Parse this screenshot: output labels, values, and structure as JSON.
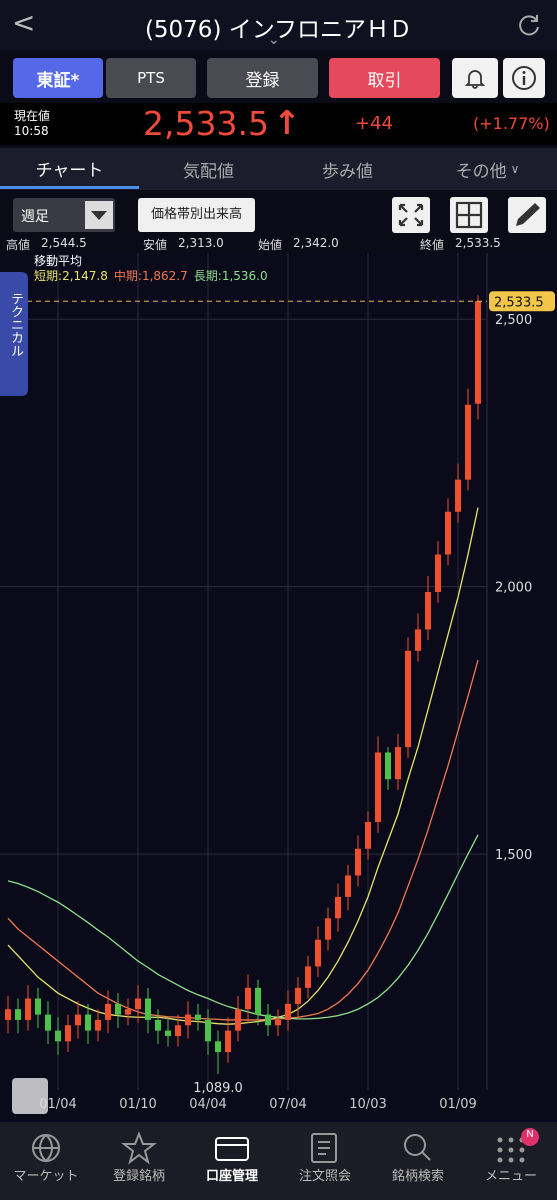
{
  "header": {
    "back": "<",
    "title": "(5076) インフロニアＨＤ",
    "chevron": "⌄"
  },
  "buttons": {
    "market": "東証*",
    "pts": "PTS",
    "register": "登録",
    "trade": "取引"
  },
  "quote": {
    "label": "現在値",
    "time": "10:58",
    "price": "2,533.5",
    "arrow": "↑",
    "change": "+44",
    "change_pct": "(+1.77%)"
  },
  "tabs": [
    "チャート",
    "気配値",
    "歩み値",
    "その他"
  ],
  "toolbar": {
    "period": "週足",
    "volume_profile": "価格帯別出来高"
  },
  "summary": [
    {
      "label": "高値",
      "value": "2,544.5"
    },
    {
      "label": "安値",
      "value": "2,313.0"
    },
    {
      "label": "始値",
      "value": "2,342.0"
    },
    {
      "label": "終値",
      "value": "2,533.5"
    }
  ],
  "side_tab": "テクニカル",
  "chart_data": {
    "type": "candlestick",
    "indicator_title": "移動平均",
    "categories": [
      null,
      null,
      null,
      null,
      null,
      "01/04",
      null,
      null,
      null,
      null,
      null,
      null,
      null,
      "01/10",
      null,
      null,
      null,
      null,
      null,
      null,
      "04/04",
      null,
      null,
      null,
      null,
      null,
      null,
      null,
      "07/04",
      null,
      null,
      null,
      null,
      null,
      null,
      null,
      "10/03",
      null,
      null,
      null,
      null,
      null,
      null,
      null,
      null,
      "01/09",
      null,
      null
    ],
    "open": [
      1190,
      1210,
      1190,
      1230,
      1200,
      1170,
      1150,
      1180,
      1200,
      1170,
      1190,
      1220,
      1200,
      1210,
      1230,
      1190,
      1170,
      1160,
      1180,
      1200,
      1190,
      1150,
      1130,
      1170,
      1210,
      1250,
      1200,
      1180,
      1190,
      1220,
      1250,
      1290,
      1340,
      1380,
      1420,
      1460,
      1510,
      1560,
      1690,
      1640,
      1700,
      1880,
      1920,
      1990,
      2060,
      2140,
      2200,
      2342
    ],
    "high": [
      1235,
      1230,
      1255,
      1250,
      1225,
      1195,
      1200,
      1225,
      1220,
      1210,
      1245,
      1240,
      1230,
      1255,
      1250,
      1210,
      1195,
      1200,
      1225,
      1220,
      1210,
      1170,
      1195,
      1235,
      1275,
      1265,
      1220,
      1210,
      1245,
      1270,
      1310,
      1365,
      1400,
      1445,
      1480,
      1535,
      1580,
      1720,
      1700,
      1725,
      1905,
      1950,
      2020,
      2085,
      2165,
      2230,
      2370,
      2544.5
    ],
    "low": [
      1165,
      1165,
      1170,
      1175,
      1145,
      1125,
      1130,
      1155,
      1145,
      1150,
      1165,
      1175,
      1180,
      1185,
      1165,
      1145,
      1140,
      1140,
      1155,
      1170,
      1125,
      1089,
      1110,
      1150,
      1185,
      1180,
      1160,
      1160,
      1170,
      1195,
      1230,
      1270,
      1320,
      1355,
      1395,
      1440,
      1490,
      1540,
      1620,
      1620,
      1680,
      1860,
      1900,
      1970,
      2040,
      2120,
      2180,
      2313
    ],
    "close": [
      1210,
      1190,
      1230,
      1200,
      1170,
      1150,
      1180,
      1200,
      1170,
      1190,
      1220,
      1200,
      1210,
      1230,
      1190,
      1170,
      1160,
      1180,
      1200,
      1190,
      1150,
      1130,
      1170,
      1210,
      1250,
      1200,
      1180,
      1190,
      1220,
      1250,
      1290,
      1340,
      1380,
      1420,
      1460,
      1510,
      1560,
      1690,
      1640,
      1700,
      1880,
      1920,
      1990,
      2060,
      2140,
      2200,
      2340,
      2533.5
    ],
    "last_price_label": "2,533.5",
    "low_label": "1,089.0",
    "up_color": "#f0502e",
    "down_color": "#4cc24a",
    "series": [
      {
        "name": "短期",
        "color": "#e8e36a",
        "values": [
          1330,
          1310,
          1290,
          1270,
          1255,
          1240,
          1230,
          1220,
          1212,
          1205,
          1200,
          1198,
          1196,
          1195,
          1195,
          1195,
          1193,
          1190,
          1188,
          1187,
          1185,
          1183,
          1182,
          1183,
          1185,
          1187,
          1190,
          1195,
          1200,
          1210,
          1225,
          1245,
          1270,
          1300,
          1335,
          1375,
          1420,
          1475,
          1525,
          1575,
          1640,
          1700,
          1770,
          1840,
          1910,
          1980,
          2060,
          2147.8
        ],
        "value_labels": [
          null,
          null,
          null,
          null,
          null,
          null,
          null,
          null,
          null,
          null,
          null,
          null,
          null,
          null,
          null,
          null,
          null,
          null,
          null,
          null,
          null,
          null,
          null,
          null,
          null,
          null,
          null,
          null,
          null,
          null,
          null,
          null,
          null,
          null,
          null,
          null,
          null,
          null,
          null,
          null,
          null,
          null,
          null,
          null,
          null,
          null,
          null,
          "2,147.8"
        ]
      },
      {
        "name": "中期",
        "color": "#f07850",
        "values": [
          1380,
          1360,
          1345,
          1330,
          1315,
          1300,
          1285,
          1270,
          1255,
          1240,
          1230,
          1220,
          1212,
          1205,
          1200,
          1198,
          1196,
          1195,
          1194,
          1193,
          1192,
          1191,
          1190,
          1190,
          1190,
          1190,
          1191,
          1192,
          1193,
          1195,
          1198,
          1202,
          1210,
          1222,
          1238,
          1258,
          1283,
          1315,
          1350,
          1390,
          1440,
          1490,
          1545,
          1605,
          1665,
          1730,
          1795,
          1862.7
        ],
        "value_labels": [
          null,
          null,
          null,
          null,
          null,
          null,
          null,
          null,
          null,
          null,
          null,
          null,
          null,
          null,
          null,
          null,
          null,
          null,
          null,
          null,
          null,
          null,
          null,
          null,
          null,
          null,
          null,
          null,
          null,
          null,
          null,
          null,
          null,
          null,
          null,
          null,
          null,
          null,
          null,
          null,
          null,
          null,
          null,
          null,
          null,
          null,
          null,
          "1,862.7"
        ]
      },
      {
        "name": "長期",
        "color": "#8de08a",
        "values": [
          1450,
          1445,
          1438,
          1430,
          1420,
          1410,
          1398,
          1385,
          1372,
          1358,
          1345,
          1330,
          1315,
          1300,
          1288,
          1275,
          1265,
          1255,
          1245,
          1237,
          1230,
          1222,
          1215,
          1210,
          1205,
          1200,
          1197,
          1195,
          1193,
          1192,
          1192,
          1193,
          1195,
          1198,
          1203,
          1210,
          1220,
          1232,
          1248,
          1268,
          1292,
          1320,
          1352,
          1388,
          1425,
          1463,
          1500,
          1536
        ],
        "value_labels": [
          null,
          null,
          null,
          null,
          null,
          null,
          null,
          null,
          null,
          null,
          null,
          null,
          null,
          null,
          null,
          null,
          null,
          null,
          null,
          null,
          null,
          null,
          null,
          null,
          null,
          null,
          null,
          null,
          null,
          null,
          null,
          null,
          null,
          null,
          null,
          null,
          null,
          null,
          null,
          null,
          null,
          null,
          null,
          null,
          null,
          null,
          null,
          "1,536.0"
        ]
      }
    ],
    "ylim": [
      1059,
      2620
    ],
    "yticks": [
      {
        "value": 1500,
        "label": "1,500"
      },
      {
        "value": 2000,
        "label": "2,000"
      },
      {
        "value": 2500,
        "label": "2,500"
      }
    ]
  },
  "nav": [
    "マーケット",
    "登録銘柄",
    "口座管理",
    "注文照会",
    "銘柄検索",
    "メニュー"
  ],
  "nav_badge": "N"
}
